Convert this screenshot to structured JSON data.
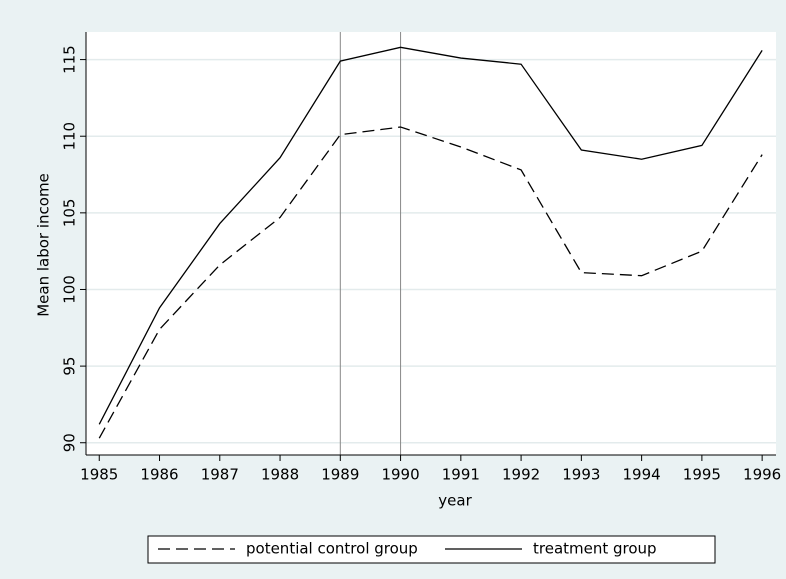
{
  "chart_data": {
    "type": "line",
    "x_label": "year",
    "y_label": "Mean labor income",
    "x": [
      1985,
      1986,
      1987,
      1988,
      1989,
      1990,
      1991,
      1992,
      1993,
      1994,
      1995,
      1996
    ],
    "series": [
      {
        "name": "potential control group",
        "color": "#000000",
        "style": "dashed",
        "values": [
          90.3,
          97.4,
          101.6,
          104.7,
          110.1,
          110.6,
          109.3,
          107.8,
          101.1,
          100.9,
          102.5,
          108.8
        ]
      },
      {
        "name": "treatment group",
        "color": "#000000",
        "style": "solid",
        "values": [
          91.2,
          98.8,
          104.3,
          108.6,
          114.9,
          115.8,
          115.1,
          114.7,
          109.1,
          108.5,
          109.4,
          115.6
        ]
      }
    ],
    "xlim": [
      1984.78,
      1996.23
    ],
    "ylim": [
      89.2,
      116.8
    ],
    "xticks": [
      1985,
      1986,
      1987,
      1988,
      1989,
      1990,
      1991,
      1992,
      1993,
      1994,
      1995,
      1996
    ],
    "yticks": [
      90,
      95,
      100,
      105,
      110,
      115
    ],
    "xlines": [
      1989,
      1990
    ],
    "grid": true,
    "legend": "bottom"
  }
}
